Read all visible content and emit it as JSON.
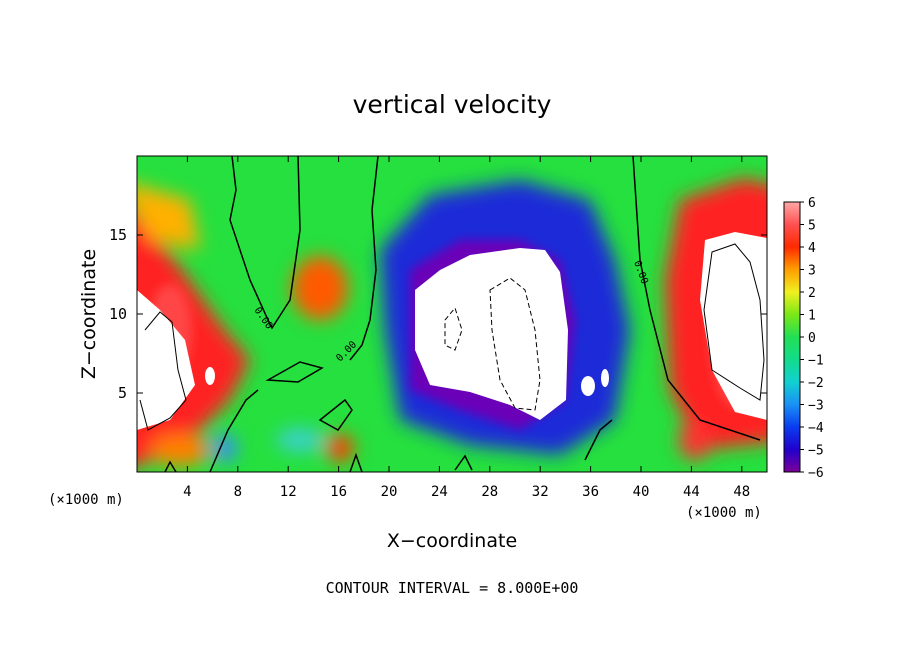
{
  "chart_data": {
    "type": "heatmap",
    "title": "vertical velocity",
    "xlabel": "X−coordinate",
    "ylabel": "Z−coordinate",
    "x_unit_left": "(×1000 m)",
    "x_unit_right": "(×1000 m)",
    "footer": "CONTOUR INTERVAL = 8.000E+00",
    "xlim": [
      0,
      50
    ],
    "ylim": [
      0,
      20
    ],
    "x_ticks": [
      4,
      8,
      12,
      16,
      20,
      24,
      28,
      32,
      36,
      40,
      44,
      48
    ],
    "y_ticks": [
      5,
      10,
      15
    ],
    "colorbar": {
      "range": [
        -6,
        6
      ],
      "ticks": [
        "6",
        "5",
        "4",
        "3",
        "2",
        "1",
        "0",
        "−1",
        "−2",
        "−3",
        "−4",
        "−5",
        "−6"
      ],
      "saturation_color": "#ffffff"
    },
    "contour_labels": [
      "0.00",
      "0.00",
      "0.00"
    ],
    "features": [
      {
        "kind": "updraft",
        "x": 1.0,
        "z": 8.0,
        "value": 8
      },
      {
        "kind": "updraft",
        "x": 46.5,
        "z": 10.5,
        "value": 8
      },
      {
        "kind": "updraft",
        "x": 14.5,
        "z": 11.5,
        "value": 4
      },
      {
        "kind": "downdraft",
        "x": 29.5,
        "z": 9.5,
        "value": -8
      }
    ]
  }
}
